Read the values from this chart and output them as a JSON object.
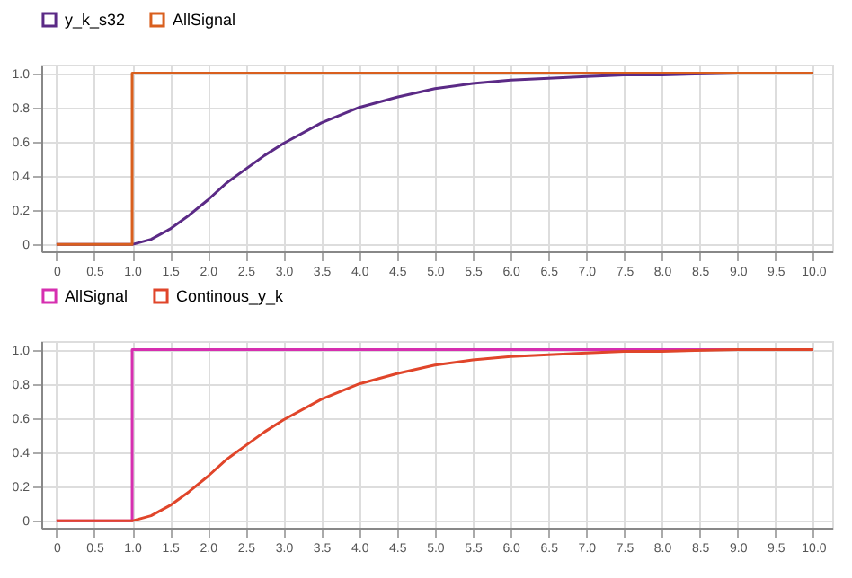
{
  "chart_data": [
    {
      "type": "line",
      "legend": "top left",
      "grid": true,
      "marker": "none",
      "line_style": "solid",
      "xlim": [
        -0.2,
        10.25
      ],
      "ylim": [
        -0.04,
        1.05
      ],
      "xticks": [
        0,
        {
          "value": 0.5,
          "label": "0.5"
        },
        {
          "value": 1,
          "label": "1.0"
        },
        {
          "value": 1.5,
          "label": "1.5"
        },
        {
          "value": 2,
          "label": "2.0"
        },
        {
          "value": 2.5,
          "label": "2.5"
        },
        {
          "value": 3,
          "label": "3.0"
        },
        {
          "value": 3.5,
          "label": "3.5"
        },
        {
          "value": 4,
          "label": "4.0"
        },
        {
          "value": 4.5,
          "label": "4.5"
        },
        {
          "value": 5,
          "label": "5.0"
        },
        {
          "value": 5.5,
          "label": "5.5"
        },
        {
          "value": 6,
          "label": "6.0"
        },
        {
          "value": 6.5,
          "label": "6.5"
        },
        {
          "value": 7,
          "label": "7.0"
        },
        {
          "value": 7.5,
          "label": "7.5"
        },
        {
          "value": 8,
          "label": "8.0"
        },
        {
          "value": 8.5,
          "label": "8.5"
        },
        {
          "value": 9,
          "label": "9.0"
        },
        {
          "value": 9.5,
          "label": "9.5"
        },
        {
          "value": 10,
          "label": "10.0"
        }
      ],
      "yticks": [
        0,
        0.2,
        0.4,
        0.6,
        0.8,
        {
          "value": 1,
          "label": "1.0"
        }
      ],
      "series": [
        {
          "name": "y_k_s32",
          "color": "#5b2a86",
          "x": [
            0,
            1,
            1.25,
            1.5,
            1.75,
            2,
            2.25,
            2.5,
            2.75,
            3,
            3.5,
            4,
            4.5,
            5,
            5.5,
            6,
            6.5,
            7,
            7.5,
            8,
            9,
            10
          ],
          "values": [
            0,
            0,
            0.03,
            0.09,
            0.17,
            0.26,
            0.36,
            0.44,
            0.52,
            0.59,
            0.71,
            0.8,
            0.86,
            0.91,
            0.94,
            0.96,
            0.97,
            0.98,
            0.99,
            0.99,
            1.0,
            1.0
          ]
        },
        {
          "name": "AllSignal",
          "color": "#d95f1e",
          "type": "step",
          "x": [
            0,
            1,
            10
          ],
          "values": [
            0,
            1,
            1
          ]
        }
      ]
    },
    {
      "type": "line",
      "legend": "top left",
      "grid": true,
      "marker": "none",
      "line_style": "solid",
      "xlim": [
        -0.2,
        10.25
      ],
      "ylim": [
        -0.04,
        1.05
      ],
      "xticks": [
        0,
        {
          "value": 0.5,
          "label": "0.5"
        },
        {
          "value": 1,
          "label": "1.0"
        },
        {
          "value": 1.5,
          "label": "1.5"
        },
        {
          "value": 2,
          "label": "2.0"
        },
        {
          "value": 2.5,
          "label": "2.5"
        },
        {
          "value": 3,
          "label": "3.0"
        },
        {
          "value": 3.5,
          "label": "3.5"
        },
        {
          "value": 4,
          "label": "4.0"
        },
        {
          "value": 4.5,
          "label": "4.5"
        },
        {
          "value": 5,
          "label": "5.0"
        },
        {
          "value": 5.5,
          "label": "5.5"
        },
        {
          "value": 6,
          "label": "6.0"
        },
        {
          "value": 6.5,
          "label": "6.5"
        },
        {
          "value": 7,
          "label": "7.0"
        },
        {
          "value": 7.5,
          "label": "7.5"
        },
        {
          "value": 8,
          "label": "8.0"
        },
        {
          "value": 8.5,
          "label": "8.5"
        },
        {
          "value": 9,
          "label": "9.0"
        },
        {
          "value": 9.5,
          "label": "9.5"
        },
        {
          "value": 10,
          "label": "10.0"
        }
      ],
      "yticks": [
        0,
        0.2,
        0.4,
        0.6,
        0.8,
        {
          "value": 1,
          "label": "1.0"
        }
      ],
      "series": [
        {
          "name": "AllSignal",
          "color": "#d62fb0",
          "type": "step",
          "x": [
            0,
            1,
            10
          ],
          "values": [
            0,
            1,
            1
          ]
        },
        {
          "name": "Continous_y_k",
          "color": "#e0452a",
          "x": [
            0,
            1,
            1.25,
            1.5,
            1.75,
            2,
            2.25,
            2.5,
            2.75,
            3,
            3.5,
            4,
            4.5,
            5,
            5.5,
            6,
            6.5,
            7,
            7.5,
            8,
            9,
            10
          ],
          "values": [
            0,
            0,
            0.03,
            0.09,
            0.17,
            0.26,
            0.36,
            0.44,
            0.52,
            0.59,
            0.71,
            0.8,
            0.86,
            0.91,
            0.94,
            0.96,
            0.97,
            0.98,
            0.99,
            0.99,
            1.0,
            1.0
          ]
        }
      ]
    }
  ]
}
